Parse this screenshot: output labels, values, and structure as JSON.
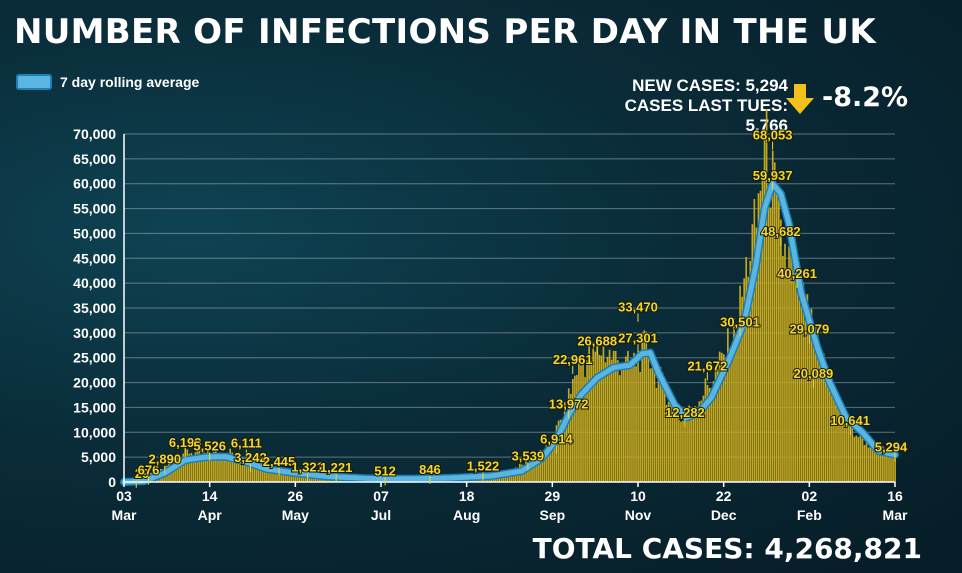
{
  "title": "NUMBER OF INFECTIONS PER DAY IN THE UK",
  "legend": {
    "label": "7 day rolling average"
  },
  "stats": {
    "new_cases": "NEW CASES: 5,294",
    "last_tues": "CASES LAST TUES: 5,766",
    "change": "-8.2%"
  },
  "total": "TOTAL CASES: 4,268,821",
  "colors": {
    "bars": "#c9a91c",
    "line": "#5ab6e0",
    "line_edge": "#1d7fb3",
    "labels": "#f0d733",
    "arrow": "#f2c21b"
  },
  "chart_data": {
    "type": "bar",
    "ylim": [
      0,
      70000
    ],
    "y_ticks": [
      "0",
      "5,000",
      "10,000",
      "15,000",
      "20,000",
      "25,000",
      "30,000",
      "35,000",
      "40,000",
      "45,000",
      "50,000",
      "55,000",
      "60,000",
      "65,000",
      "70,000"
    ],
    "x_range": [
      0,
      378
    ],
    "x_ticks": [
      {
        "x": 0,
        "day": "03",
        "month": "Mar"
      },
      {
        "x": 42,
        "day": "14",
        "month": "Apr"
      },
      {
        "x": 84,
        "day": "26",
        "month": "May"
      },
      {
        "x": 126,
        "day": "07",
        "month": "Jul"
      },
      {
        "x": 168,
        "day": "18",
        "month": "Aug"
      },
      {
        "x": 210,
        "day": "29",
        "month": "Sep"
      },
      {
        "x": 252,
        "day": "10",
        "month": "Nov"
      },
      {
        "x": 294,
        "day": "22",
        "month": "Dec"
      },
      {
        "x": 336,
        "day": "02",
        "month": "Feb"
      },
      {
        "x": 378,
        "day": "16",
        "month": "Mar"
      }
    ],
    "daily_cases_anchors": [
      [
        0,
        29
      ],
      [
        8,
        676
      ],
      [
        20,
        2890
      ],
      [
        30,
        6199
      ],
      [
        40,
        5526
      ],
      [
        52,
        6111
      ],
      [
        62,
        3242
      ],
      [
        78,
        2445
      ],
      [
        98,
        1321
      ],
      [
        112,
        1221
      ],
      [
        128,
        512
      ],
      [
        150,
        846
      ],
      [
        170,
        1500
      ],
      [
        184,
        1522
      ],
      [
        196,
        3539
      ],
      [
        208,
        6914
      ],
      [
        216,
        13972
      ],
      [
        222,
        22961
      ],
      [
        234,
        26688
      ],
      [
        248,
        23000
      ],
      [
        256,
        27301
      ],
      [
        262,
        21000
      ],
      [
        274,
        12282
      ],
      [
        290,
        21672
      ],
      [
        300,
        30501
      ],
      [
        306,
        45000
      ],
      [
        310,
        52000
      ],
      [
        314,
        68053
      ],
      [
        318,
        59937
      ],
      [
        322,
        48682
      ],
      [
        330,
        40261
      ],
      [
        338,
        29079
      ],
      [
        346,
        20089
      ],
      [
        356,
        10641
      ],
      [
        366,
        7500
      ],
      [
        378,
        5294
      ]
    ],
    "rolling_avg_anchors": [
      [
        0,
        0
      ],
      [
        10,
        200
      ],
      [
        20,
        1800
      ],
      [
        30,
        4400
      ],
      [
        40,
        5000
      ],
      [
        50,
        5100
      ],
      [
        60,
        4000
      ],
      [
        70,
        2600
      ],
      [
        84,
        1800
      ],
      [
        100,
        1100
      ],
      [
        120,
        700
      ],
      [
        140,
        650
      ],
      [
        160,
        800
      ],
      [
        180,
        1200
      ],
      [
        195,
        2200
      ],
      [
        205,
        4800
      ],
      [
        212,
        8500
      ],
      [
        218,
        13500
      ],
      [
        224,
        17500
      ],
      [
        232,
        21000
      ],
      [
        240,
        23000
      ],
      [
        248,
        23500
      ],
      [
        254,
        25800
      ],
      [
        258,
        26000
      ],
      [
        262,
        22000
      ],
      [
        270,
        15500
      ],
      [
        276,
        13000
      ],
      [
        282,
        14000
      ],
      [
        288,
        17000
      ],
      [
        296,
        24000
      ],
      [
        304,
        32000
      ],
      [
        310,
        44000
      ],
      [
        314,
        55000
      ],
      [
        318,
        60000
      ],
      [
        322,
        58000
      ],
      [
        326,
        52000
      ],
      [
        332,
        38000
      ],
      [
        340,
        27000
      ],
      [
        346,
        20000
      ],
      [
        354,
        13000
      ],
      [
        362,
        10000
      ],
      [
        370,
        6200
      ],
      [
        378,
        5500
      ]
    ],
    "data_labels": [
      {
        "x": 6,
        "value": 29,
        "text": "29"
      },
      {
        "x": 12,
        "value": 676,
        "text": "676"
      },
      {
        "x": 20,
        "value": 2890,
        "text": "2,890"
      },
      {
        "x": 30,
        "value": 6199,
        "text": "6,199"
      },
      {
        "x": 42,
        "value": 5526,
        "text": "5,526"
      },
      {
        "x": 60,
        "value": 6111,
        "text": "6,111"
      },
      {
        "x": 62,
        "value": 3242,
        "text": "3,242"
      },
      {
        "x": 76,
        "value": 2445,
        "text": "2,445"
      },
      {
        "x": 90,
        "value": 1321,
        "text": "1,321"
      },
      {
        "x": 104,
        "value": 1221,
        "text": "1,221"
      },
      {
        "x": 128,
        "value": 512,
        "text": "512"
      },
      {
        "x": 150,
        "value": 846,
        "text": "846"
      },
      {
        "x": 176,
        "value": 1522,
        "text": "1,522"
      },
      {
        "x": 198,
        "value": 3539,
        "text": "3,539"
      },
      {
        "x": 212,
        "value": 6914,
        "text": "6,914"
      },
      {
        "x": 218,
        "value": 13972,
        "text": "13,972"
      },
      {
        "x": 220,
        "value": 22961,
        "text": "22,961"
      },
      {
        "x": 232,
        "value": 26688,
        "text": "26,688"
      },
      {
        "x": 252,
        "value": 33470,
        "text": "33,470"
      },
      {
        "x": 252,
        "value": 27301,
        "text": "27,301"
      },
      {
        "x": 275,
        "value": 12282,
        "text": "12,282"
      },
      {
        "x": 286,
        "value": 21672,
        "text": "21,672"
      },
      {
        "x": 302,
        "value": 30501,
        "text": "30,501"
      },
      {
        "x": 318,
        "value": 68053,
        "text": "68,053"
      },
      {
        "x": 318,
        "value": 59937,
        "text": "59,937"
      },
      {
        "x": 322,
        "value": 48682,
        "text": "48,682"
      },
      {
        "x": 330,
        "value": 40261,
        "text": "40,261"
      },
      {
        "x": 336,
        "value": 29079,
        "text": "29,079"
      },
      {
        "x": 338,
        "value": 20089,
        "text": "20,089"
      },
      {
        "x": 356,
        "value": 10641,
        "text": "10,641"
      },
      {
        "x": 378,
        "value": 5294,
        "text": "5,294"
      }
    ]
  }
}
